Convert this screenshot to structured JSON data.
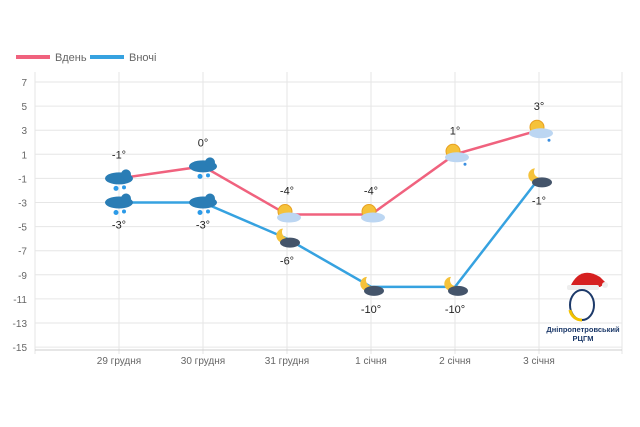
{
  "chart_data": {
    "type": "line",
    "categories": [
      "29 грудня",
      "30 грудня",
      "31 грудня",
      "1 січня",
      "2 січня",
      "3 січня"
    ],
    "series": [
      {
        "name": "Вдень",
        "color": "#f0627e",
        "values": [
          -1,
          0,
          -4,
          -4,
          1,
          3
        ],
        "icons": [
          "snow-cloud",
          "snow-cloud",
          "sun-cloud",
          "sun-cloud",
          "sun-cloud-rain",
          "sun-cloud-rain"
        ],
        "labels": [
          "-1°",
          "0°",
          "-4°",
          "-4°",
          "1°",
          "3°"
        ]
      },
      {
        "name": "Вночі",
        "color": "#36a2e0",
        "values": [
          -3,
          -3,
          -6,
          -10,
          -10,
          -1
        ],
        "icons": [
          "snow-cloud",
          "snow-cloud",
          "moon-cloud",
          "moon-cloud",
          "moon-cloud",
          "moon-cloud"
        ],
        "labels": [
          "-3°",
          "-3°",
          "-6°",
          "-10°",
          "-10°",
          "-1°"
        ]
      }
    ],
    "yticks": [
      7,
      5,
      3,
      1,
      -1,
      -3,
      -5,
      -7,
      -9,
      -11,
      -13,
      -15
    ],
    "ylim": [
      -15,
      7
    ],
    "grid": true,
    "legend": "top-left"
  },
  "logo": {
    "line1": "Дніпропетровський",
    "line2": "РЦГМ"
  }
}
